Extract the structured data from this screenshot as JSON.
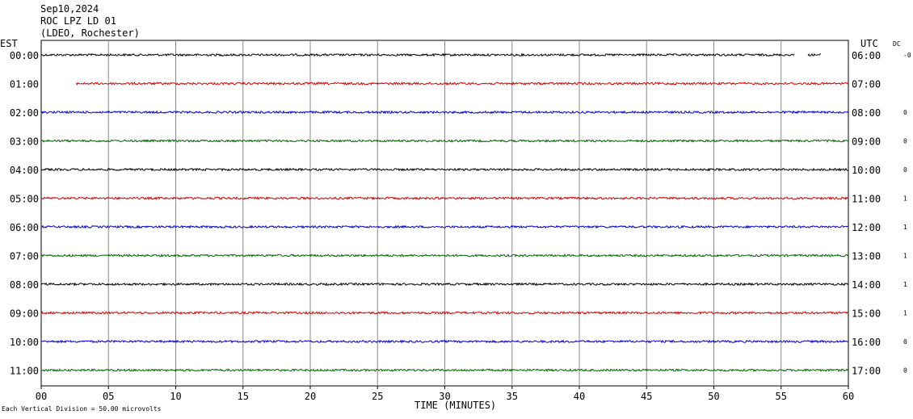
{
  "header": {
    "date": "Sep10,2024",
    "station": "ROC LPZ LD 01",
    "network": "(LDEO, Rochester)"
  },
  "left_axis_label": "EST",
  "right_axis_label": "UTC",
  "dc_label": "DC",
  "footnote": "Each Vertical Division =   50.00 microvolts",
  "chart_data": {
    "type": "line",
    "title": "ROC LPZ LD 01",
    "xlabel": "TIME (MINUTES)",
    "xlim": [
      0,
      60
    ],
    "x_ticks": [
      "00",
      "05",
      "10",
      "15",
      "20",
      "25",
      "30",
      "35",
      "40",
      "45",
      "50",
      "55",
      "60"
    ],
    "grid": "vertical every 5 minutes",
    "series": [
      {
        "est": "00:00",
        "utc": "06:00",
        "dc": "-0",
        "color": "#000000",
        "start_min": 0.0,
        "end_min": 58.0,
        "gap": [
          56.0,
          57.0
        ]
      },
      {
        "est": "01:00",
        "utc": "07:00",
        "dc": "",
        "color": "#d40000",
        "start_min": 2.6,
        "end_min": 60.0
      },
      {
        "est": "02:00",
        "utc": "08:00",
        "dc": "0",
        "color": "#0000c8",
        "start_min": 0.0,
        "end_min": 60.0
      },
      {
        "est": "03:00",
        "utc": "09:00",
        "dc": "0",
        "color": "#006400",
        "start_min": 0.0,
        "end_min": 60.0
      },
      {
        "est": "04:00",
        "utc": "10:00",
        "dc": "0",
        "color": "#000000",
        "start_min": 0.0,
        "end_min": 60.0
      },
      {
        "est": "05:00",
        "utc": "11:00",
        "dc": "1",
        "color": "#d40000",
        "start_min": 0.0,
        "end_min": 60.0
      },
      {
        "est": "06:00",
        "utc": "12:00",
        "dc": "1",
        "color": "#0000c8",
        "start_min": 0.0,
        "end_min": 60.0
      },
      {
        "est": "07:00",
        "utc": "13:00",
        "dc": "1",
        "color": "#006400",
        "start_min": 0.0,
        "end_min": 60.0
      },
      {
        "est": "08:00",
        "utc": "14:00",
        "dc": "1",
        "color": "#000000",
        "start_min": 0.0,
        "end_min": 60.0
      },
      {
        "est": "09:00",
        "utc": "15:00",
        "dc": "1",
        "color": "#d40000",
        "start_min": 0.0,
        "end_min": 60.0
      },
      {
        "est": "10:00",
        "utc": "16:00",
        "dc": "0",
        "color": "#0000c8",
        "start_min": 0.0,
        "end_min": 60.0
      },
      {
        "est": "11:00",
        "utc": "17:00",
        "dc": "0",
        "color": "#006400",
        "start_min": 0.0,
        "end_min": 60.0
      }
    ]
  }
}
